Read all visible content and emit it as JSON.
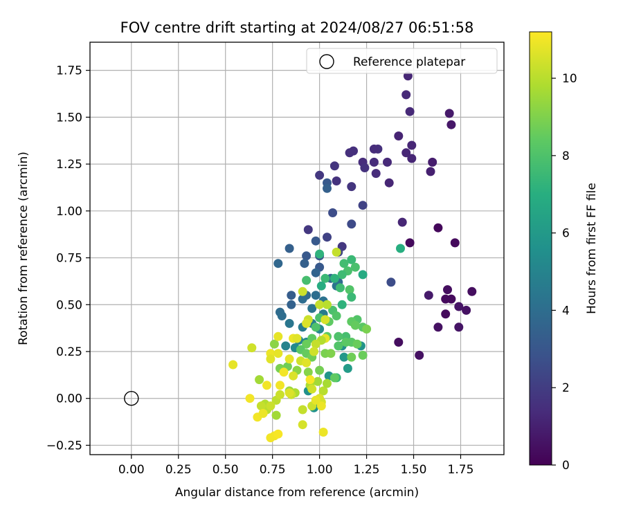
{
  "chart_data": {
    "type": "scatter",
    "title": "FOV centre drift starting at 2024/08/27 06:51:58",
    "xlabel": "Angular distance from reference (arcmin)",
    "ylabel": "Rotation from reference (arcmin)",
    "xlim": [
      -0.22,
      1.98
    ],
    "ylim": [
      -0.3,
      1.9
    ],
    "xticks": [
      0.0,
      0.25,
      0.5,
      0.75,
      1.0,
      1.25,
      1.5,
      1.75
    ],
    "xtick_labels": [
      "0.00",
      "0.25",
      "0.50",
      "0.75",
      "1.00",
      "1.25",
      "1.50",
      "1.75"
    ],
    "yticks": [
      -0.25,
      0.0,
      0.25,
      0.5,
      0.75,
      1.0,
      1.25,
      1.5,
      1.75
    ],
    "ytick_labels": [
      "−0.25",
      "0.00",
      "0.25",
      "0.50",
      "0.75",
      "1.00",
      "1.25",
      "1.50",
      "1.75"
    ],
    "grid": true,
    "legend": {
      "position": "top-right",
      "label": "Reference platepar",
      "marker": "open-circle"
    },
    "reference_point": {
      "x": 0.0,
      "y": 0.0
    },
    "colorbar": {
      "label": "Hours from first FF file",
      "colormap": "viridis",
      "range": [
        0,
        11.2
      ],
      "ticks": [
        0,
        2,
        4,
        6,
        8,
        10
      ],
      "tick_labels": [
        "0",
        "2",
        "4",
        "6",
        "8",
        "10"
      ]
    },
    "series": [
      {
        "points": [
          [
            1.47,
            1.72,
            1.2
          ],
          [
            1.46,
            1.62,
            1.3
          ],
          [
            1.48,
            1.53,
            1.3
          ],
          [
            1.69,
            1.52,
            0.8
          ],
          [
            1.7,
            1.46,
            0.7
          ],
          [
            1.42,
            1.4,
            1.1
          ],
          [
            1.49,
            1.35,
            1.2
          ],
          [
            1.31,
            1.33,
            1.5
          ],
          [
            1.29,
            1.33,
            1.4
          ],
          [
            1.46,
            1.31,
            1.2
          ],
          [
            1.49,
            1.28,
            1.2
          ],
          [
            1.23,
            1.26,
            1.4
          ],
          [
            1.24,
            1.23,
            1.6
          ],
          [
            1.29,
            1.26,
            1.4
          ],
          [
            1.36,
            1.26,
            1.3
          ],
          [
            1.6,
            1.26,
            0.9
          ],
          [
            1.59,
            1.21,
            1.0
          ],
          [
            1.3,
            1.2,
            1.4
          ],
          [
            1.16,
            1.31,
            1.5
          ],
          [
            1.18,
            1.32,
            1.5
          ],
          [
            1.08,
            1.24,
            1.7
          ],
          [
            1.37,
            1.15,
            1.2
          ],
          [
            1.09,
            1.16,
            1.6
          ],
          [
            1.17,
            1.13,
            1.7
          ],
          [
            1.23,
            1.03,
            2.2
          ],
          [
            1.44,
            0.94,
            1.2
          ],
          [
            1.63,
            0.91,
            0.2
          ],
          [
            1.48,
            0.83,
            0.3
          ],
          [
            1.72,
            0.83,
            0.3
          ],
          [
            1.38,
            0.62,
            2.6
          ],
          [
            1.58,
            0.55,
            0.8
          ],
          [
            1.68,
            0.58,
            0.4
          ],
          [
            1.67,
            0.53,
            0.3
          ],
          [
            1.7,
            0.53,
            0.3
          ],
          [
            1.74,
            0.49,
            0.6
          ],
          [
            1.78,
            0.47,
            0.5
          ],
          [
            1.81,
            0.57,
            0.4
          ],
          [
            1.67,
            0.45,
            0.3
          ],
          [
            1.63,
            0.38,
            0.5
          ],
          [
            1.74,
            0.38,
            0.6
          ],
          [
            1.42,
            0.3,
            0.4
          ],
          [
            1.53,
            0.23,
            0.5
          ],
          [
            1.0,
            1.19,
            1.8
          ],
          [
            1.04,
            1.15,
            3.1
          ],
          [
            1.04,
            1.12,
            3.4
          ],
          [
            1.07,
            0.99,
            2.6
          ],
          [
            1.17,
            0.93,
            2.5
          ],
          [
            0.94,
            0.9,
            1.8
          ],
          [
            1.04,
            0.86,
            2.2
          ],
          [
            1.12,
            0.81,
            1.8
          ],
          [
            0.98,
            0.84,
            3.1
          ],
          [
            0.84,
            0.8,
            3.4
          ],
          [
            1.1,
            0.78,
            2.3
          ],
          [
            1.0,
            0.76,
            3.0
          ],
          [
            0.93,
            0.76,
            3.1
          ],
          [
            0.78,
            0.72,
            3.7
          ],
          [
            0.92,
            0.72,
            3.4
          ],
          [
            1.0,
            0.7,
            3.1
          ],
          [
            0.98,
            0.67,
            3.6
          ],
          [
            1.06,
            0.64,
            3.7
          ],
          [
            1.1,
            0.62,
            3.9
          ],
          [
            1.09,
            0.6,
            4.3
          ],
          [
            0.85,
            0.55,
            3.3
          ],
          [
            0.93,
            0.55,
            3.8
          ],
          [
            0.98,
            0.55,
            4.0
          ],
          [
            1.02,
            0.52,
            4.2
          ],
          [
            0.85,
            0.5,
            3.5
          ],
          [
            0.91,
            0.53,
            4.0
          ],
          [
            0.79,
            0.46,
            3.9
          ],
          [
            0.8,
            0.44,
            4.0
          ],
          [
            0.96,
            0.48,
            4.3
          ],
          [
            1.02,
            0.45,
            4.6
          ],
          [
            0.84,
            0.4,
            4.4
          ],
          [
            0.91,
            0.38,
            4.6
          ],
          [
            0.96,
            0.4,
            4.8
          ],
          [
            1.0,
            0.37,
            5.2
          ],
          [
            0.89,
            0.31,
            5.0
          ],
          [
            0.93,
            0.3,
            5.2
          ],
          [
            0.82,
            0.28,
            5.0
          ],
          [
            0.87,
            0.27,
            5.3
          ],
          [
            1.12,
            0.28,
            5.5
          ],
          [
            1.22,
            0.28,
            5.7
          ],
          [
            1.13,
            0.22,
            5.9
          ],
          [
            0.94,
            0.04,
            5.6
          ],
          [
            0.97,
            -0.05,
            5.6
          ],
          [
            1.05,
            0.12,
            5.8
          ],
          [
            1.09,
            0.11,
            7.4
          ],
          [
            1.15,
            0.16,
            6.1
          ],
          [
            1.43,
            0.8,
            7.0
          ],
          [
            1.0,
            0.77,
            7.2
          ],
          [
            1.17,
            0.74,
            7.5
          ],
          [
            1.13,
            0.72,
            7.7
          ],
          [
            1.15,
            0.68,
            7.9
          ],
          [
            1.19,
            0.7,
            7.9
          ],
          [
            1.23,
            0.66,
            6.8
          ],
          [
            1.12,
            0.66,
            7.6
          ],
          [
            1.08,
            0.64,
            7.2
          ],
          [
            1.03,
            0.64,
            7.5
          ],
          [
            0.93,
            0.63,
            7.8
          ],
          [
            1.11,
            0.59,
            7.6
          ],
          [
            1.16,
            0.58,
            8.1
          ],
          [
            1.01,
            0.6,
            6.9
          ],
          [
            1.17,
            0.54,
            7.5
          ],
          [
            1.12,
            0.5,
            7.2
          ],
          [
            1.07,
            0.47,
            7.9
          ],
          [
            1.09,
            0.44,
            8.1
          ],
          [
            1.2,
            0.42,
            8.1
          ],
          [
            1.17,
            0.41,
            8.4
          ],
          [
            1.23,
            0.38,
            8.3
          ],
          [
            1.19,
            0.39,
            8.5
          ],
          [
            1.25,
            0.37,
            8.9
          ],
          [
            1.0,
            0.43,
            7.9
          ],
          [
            1.05,
            0.41,
            8.4
          ],
          [
            1.14,
            0.33,
            7.8
          ],
          [
            1.17,
            0.3,
            8.3
          ],
          [
            1.2,
            0.29,
            8.6
          ],
          [
            1.1,
            0.28,
            8.1
          ],
          [
            1.14,
            0.3,
            8.3
          ],
          [
            1.1,
            0.33,
            8.0
          ],
          [
            1.04,
            0.33,
            8.4
          ],
          [
            0.98,
            0.38,
            8.0
          ],
          [
            0.96,
            0.32,
            8.4
          ],
          [
            0.93,
            0.29,
            8.6
          ],
          [
            0.9,
            0.26,
            8.3
          ],
          [
            0.93,
            0.24,
            8.5
          ],
          [
            0.96,
            0.22,
            8.7
          ],
          [
            1.03,
            0.24,
            8.9
          ],
          [
            1.06,
            0.24,
            9.0
          ],
          [
            1.17,
            0.22,
            8.7
          ],
          [
            1.23,
            0.23,
            8.6
          ],
          [
            1.08,
            0.11,
            8.4
          ],
          [
            1.0,
            0.15,
            8.8
          ],
          [
            0.94,
            0.14,
            9.1
          ],
          [
            0.88,
            0.15,
            9.2
          ],
          [
            0.83,
            0.17,
            8.7
          ],
          [
            0.79,
            0.16,
            8.9
          ],
          [
            0.76,
            0.29,
            9.2
          ],
          [
            0.84,
            0.04,
            9.5
          ],
          [
            0.87,
            0.03,
            9.8
          ],
          [
            0.99,
            0.09,
            9.6
          ],
          [
            0.95,
            0.07,
            9.8
          ],
          [
            1.02,
            0.04,
            10.0
          ],
          [
            1.04,
            0.08,
            9.7
          ],
          [
            0.68,
            0.1,
            9.6
          ],
          [
            0.71,
            -0.03,
            9.9
          ],
          [
            0.72,
            -0.06,
            10.0
          ],
          [
            0.77,
            -0.01,
            10.1
          ],
          [
            0.79,
            0.02,
            10.3
          ],
          [
            0.77,
            -0.09,
            9.6
          ],
          [
            0.69,
            -0.04,
            10.2
          ],
          [
            0.74,
            -0.04,
            10.3
          ],
          [
            0.85,
            0.02,
            10.3
          ],
          [
            0.84,
            0.03,
            10.6
          ],
          [
            0.91,
            -0.06,
            10.2
          ],
          [
            0.96,
            0.05,
            10.4
          ],
          [
            1.0,
            0.0,
            10.6
          ],
          [
            0.96,
            -0.04,
            10.3
          ],
          [
            1.01,
            -0.02,
            10.5
          ],
          [
            1.03,
            0.32,
            10.8
          ],
          [
            1.03,
            0.42,
            10.5
          ],
          [
            0.94,
            0.42,
            10.3
          ],
          [
            0.93,
            0.4,
            10.6
          ],
          [
            0.91,
            0.57,
            10.3
          ],
          [
            1.0,
            0.5,
            10.2
          ],
          [
            1.04,
            0.5,
            10.0
          ],
          [
            1.01,
            0.31,
            9.9
          ],
          [
            0.98,
            0.29,
            10.2
          ],
          [
            0.97,
            0.25,
            10.4
          ],
          [
            0.9,
            0.2,
            10.4
          ],
          [
            0.93,
            0.19,
            10.7
          ],
          [
            0.86,
            0.12,
            10.6
          ],
          [
            0.84,
            0.21,
            10.8
          ],
          [
            0.86,
            0.32,
            10.9
          ],
          [
            0.88,
            0.32,
            10.7
          ],
          [
            0.78,
            0.33,
            10.8
          ],
          [
            0.74,
            0.24,
            10.9
          ],
          [
            0.74,
            0.21,
            10.7
          ],
          [
            0.78,
            0.24,
            10.8
          ],
          [
            0.81,
            0.14,
            11.0
          ],
          [
            0.79,
            0.07,
            11.0
          ],
          [
            0.72,
            0.07,
            11.0
          ],
          [
            0.64,
            0.27,
            10.4
          ],
          [
            0.54,
            0.18,
            10.8
          ],
          [
            0.63,
            0.0,
            11.0
          ],
          [
            0.67,
            -0.1,
            11.0
          ],
          [
            0.7,
            -0.08,
            10.9
          ],
          [
            0.74,
            -0.21,
            11.0
          ],
          [
            0.76,
            -0.2,
            11.0
          ],
          [
            0.78,
            -0.19,
            11.1
          ],
          [
            0.91,
            -0.14,
            10.5
          ],
          [
            1.02,
            -0.18,
            10.9
          ],
          [
            1.01,
            -0.04,
            10.9
          ],
          [
            0.98,
            -0.01,
            10.8
          ],
          [
            1.09,
            0.78,
            10.2
          ],
          [
            0.95,
            0.1,
            11.1
          ]
        ]
      }
    ]
  }
}
